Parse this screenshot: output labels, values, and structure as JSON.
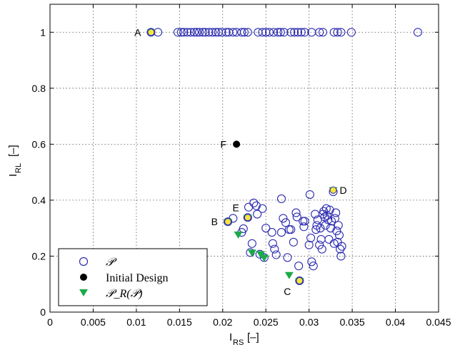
{
  "chart_data": {
    "type": "scatter",
    "xlabel": "I_RS [–]",
    "ylabel": "I_RL [–]",
    "xlim": [
      0,
      0.045
    ],
    "ylim": [
      0,
      1.1
    ],
    "xticks": [
      "0",
      "0.005",
      "0.01",
      "0.015",
      "0.02",
      "0.025",
      "0.03",
      "0.035",
      "0.04",
      "0.045"
    ],
    "yticks": [
      "0",
      "0.2",
      "0.4",
      "0.6",
      "0.8",
      "1"
    ],
    "grid": true,
    "legend": {
      "placement": "bottom-left",
      "entries": [
        "𝒫",
        "Initial Design",
        "𝒫_R(𝒫)"
      ]
    },
    "colors": {
      "pareto": "#2b2bb0",
      "initial": "#000000",
      "reduced": "#1aaa4a",
      "highlight_fill": "#f5e63a"
    },
    "series": [
      {
        "name": "𝒫",
        "marker": "open-circle",
        "points": [
          [
            0.0117,
            1.0
          ],
          [
            0.0125,
            1.0
          ],
          [
            0.0148,
            1.0
          ],
          [
            0.0152,
            1.0
          ],
          [
            0.0155,
            1.0
          ],
          [
            0.0159,
            1.0
          ],
          [
            0.0163,
            1.0
          ],
          [
            0.0167,
            1.0
          ],
          [
            0.017,
            1.0
          ],
          [
            0.0173,
            1.0
          ],
          [
            0.0177,
            1.0
          ],
          [
            0.018,
            1.0
          ],
          [
            0.0184,
            1.0
          ],
          [
            0.0188,
            1.0
          ],
          [
            0.0192,
            1.0
          ],
          [
            0.0195,
            1.0
          ],
          [
            0.0199,
            1.0
          ],
          [
            0.0204,
            1.0
          ],
          [
            0.0207,
            1.0
          ],
          [
            0.0212,
            1.0
          ],
          [
            0.0216,
            1.0
          ],
          [
            0.0222,
            1.0
          ],
          [
            0.0225,
            1.0
          ],
          [
            0.0229,
            1.0
          ],
          [
            0.0241,
            1.0
          ],
          [
            0.0246,
            1.0
          ],
          [
            0.025,
            1.0
          ],
          [
            0.0254,
            1.0
          ],
          [
            0.0259,
            1.0
          ],
          [
            0.0264,
            1.0
          ],
          [
            0.0267,
            1.0
          ],
          [
            0.0271,
            1.0
          ],
          [
            0.0279,
            1.0
          ],
          [
            0.0283,
            1.0
          ],
          [
            0.0287,
            1.0
          ],
          [
            0.0291,
            1.0
          ],
          [
            0.0295,
            1.0
          ],
          [
            0.0303,
            1.0
          ],
          [
            0.0312,
            1.0
          ],
          [
            0.0316,
            1.0
          ],
          [
            0.0329,
            1.0
          ],
          [
            0.0333,
            1.0
          ],
          [
            0.0337,
            1.0
          ],
          [
            0.0349,
            1.0
          ],
          [
            0.0426,
            1.0
          ],
          [
            0.0206,
            0.323
          ],
          [
            0.0212,
            0.335
          ],
          [
            0.0222,
            0.285
          ],
          [
            0.0224,
            0.298
          ],
          [
            0.0229,
            0.338
          ],
          [
            0.023,
            0.375
          ],
          [
            0.0236,
            0.39
          ],
          [
            0.0239,
            0.38
          ],
          [
            0.024,
            0.35
          ],
          [
            0.0246,
            0.37
          ],
          [
            0.0234,
            0.245
          ],
          [
            0.0232,
            0.213
          ],
          [
            0.0243,
            0.207
          ],
          [
            0.0248,
            0.195
          ],
          [
            0.025,
            0.3
          ],
          [
            0.0257,
            0.285
          ],
          [
            0.0258,
            0.245
          ],
          [
            0.026,
            0.225
          ],
          [
            0.0262,
            0.205
          ],
          [
            0.0268,
            0.285
          ],
          [
            0.027,
            0.335
          ],
          [
            0.0268,
            0.405
          ],
          [
            0.0273,
            0.32
          ],
          [
            0.0275,
            0.195
          ],
          [
            0.0277,
            0.295
          ],
          [
            0.0279,
            0.295
          ],
          [
            0.0282,
            0.25
          ],
          [
            0.0285,
            0.355
          ],
          [
            0.0286,
            0.34
          ],
          [
            0.0288,
            0.165
          ],
          [
            0.0289,
            0.112
          ],
          [
            0.0293,
            0.325
          ],
          [
            0.0294,
            0.305
          ],
          [
            0.0295,
            0.325
          ],
          [
            0.03,
            0.24
          ],
          [
            0.0301,
            0.42
          ],
          [
            0.0302,
            0.265
          ],
          [
            0.0303,
            0.18
          ],
          [
            0.0305,
            0.165
          ],
          [
            0.0307,
            0.35
          ],
          [
            0.0308,
            0.295
          ],
          [
            0.0309,
            0.31
          ],
          [
            0.031,
            0.33
          ],
          [
            0.0312,
            0.24
          ],
          [
            0.0313,
            0.3
          ],
          [
            0.0314,
            0.26
          ],
          [
            0.0315,
            0.225
          ],
          [
            0.0316,
            0.35
          ],
          [
            0.0317,
            0.36
          ],
          [
            0.0318,
            0.34
          ],
          [
            0.0319,
            0.31
          ],
          [
            0.032,
            0.37
          ],
          [
            0.0321,
            0.345
          ],
          [
            0.0322,
            0.33
          ],
          [
            0.0323,
            0.26
          ],
          [
            0.0324,
            0.365
          ],
          [
            0.0325,
            0.3
          ],
          [
            0.0326,
            0.325
          ],
          [
            0.0328,
            0.43
          ],
          [
            0.0329,
            0.245
          ],
          [
            0.033,
            0.335
          ],
          [
            0.0331,
            0.355
          ],
          [
            0.0332,
            0.29
          ],
          [
            0.0333,
            0.25
          ],
          [
            0.0334,
            0.31
          ],
          [
            0.0335,
            0.275
          ],
          [
            0.0336,
            0.225
          ],
          [
            0.0337,
            0.2
          ],
          [
            0.0338,
            0.235
          ]
        ]
      },
      {
        "name": "Initial Design",
        "marker": "filled-circle",
        "points": [
          [
            0.0216,
            0.6
          ]
        ]
      },
      {
        "name": "𝒫_R(𝒫)",
        "marker": "filled-triangle-down",
        "points": [
          [
            0.0117,
            1.0
          ],
          [
            0.0206,
            0.323
          ],
          [
            0.0218,
            0.278
          ],
          [
            0.0229,
            0.338
          ],
          [
            0.0234,
            0.213
          ],
          [
            0.0244,
            0.208
          ],
          [
            0.0248,
            0.195
          ],
          [
            0.0277,
            0.133
          ],
          [
            0.0289,
            0.112
          ],
          [
            0.0328,
            0.436
          ]
        ]
      }
    ],
    "highlighted": [
      [
        0.0117,
        1.0
      ],
      [
        0.0206,
        0.323
      ],
      [
        0.0229,
        0.338
      ],
      [
        0.0289,
        0.112
      ],
      [
        0.0328,
        0.436
      ]
    ],
    "annotations": [
      {
        "text": "A",
        "x": 0.0117,
        "y": 1.0,
        "side": "left"
      },
      {
        "text": "B",
        "x": 0.0206,
        "y": 0.323,
        "side": "left"
      },
      {
        "text": "C",
        "x": 0.0289,
        "y": 0.112,
        "side": "below-left"
      },
      {
        "text": "D",
        "x": 0.0328,
        "y": 0.436,
        "side": "right"
      },
      {
        "text": "E",
        "x": 0.0229,
        "y": 0.338,
        "side": "above-left"
      },
      {
        "text": "F",
        "x": 0.0216,
        "y": 0.6,
        "side": "left"
      }
    ]
  }
}
